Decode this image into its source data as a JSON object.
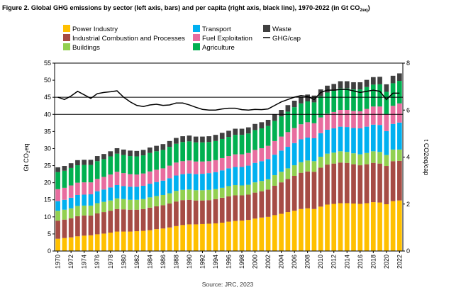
{
  "chart_data": {
    "type": "bar",
    "stacked": true,
    "title": "Figure 2. Global GHG emissions by sector (left axis, bars) and per capita (right axis, black line), 1970-2022 (in Gt CO",
    "title_sub": "2eq",
    "title_end": ")",
    "source": "Source: JRC, 2023",
    "ylabel_main": "Gt CO",
    "ylabel_sub": "2",
    "ylabel_tail": "eq",
    "y2label": "t CO2eq/cap",
    "ylim": [
      0,
      55
    ],
    "y2lim": [
      0,
      8
    ],
    "yticks": [
      "0",
      "5",
      "10",
      "15",
      "20",
      "25",
      "30",
      "35",
      "40",
      "45",
      "50",
      "55"
    ],
    "y2ticks": [
      "0",
      "2",
      "4",
      "6",
      "8"
    ],
    "grid": false,
    "hlines": [
      40,
      45
    ],
    "legend_position": "top-left",
    "xticks": [
      "1970",
      "1972",
      "1974",
      "1976",
      "1978",
      "1980",
      "1982",
      "1984",
      "1986",
      "1988",
      "1990",
      "1992",
      "1994",
      "1996",
      "1998",
      "2000",
      "2002",
      "2004",
      "2006",
      "2008",
      "2010",
      "2012",
      "2014",
      "2016",
      "2018",
      "2020",
      "2022"
    ],
    "years": [
      1970,
      1971,
      1972,
      1973,
      1974,
      1975,
      1976,
      1977,
      1978,
      1979,
      1980,
      1981,
      1982,
      1983,
      1984,
      1985,
      1986,
      1987,
      1988,
      1989,
      1990,
      1991,
      1992,
      1993,
      1994,
      1995,
      1996,
      1997,
      1998,
      1999,
      2000,
      2001,
      2002,
      2003,
      2004,
      2005,
      2006,
      2007,
      2008,
      2009,
      2010,
      2011,
      2012,
      2013,
      2014,
      2015,
      2016,
      2017,
      2018,
      2019,
      2020,
      2021,
      2022
    ],
    "series": [
      {
        "name": "Power Industry",
        "color": "#ffc000",
        "values": [
          3.6,
          3.8,
          4.0,
          4.3,
          4.5,
          4.6,
          4.9,
          5.1,
          5.4,
          5.7,
          5.7,
          5.7,
          5.8,
          5.9,
          6.1,
          6.4,
          6.6,
          6.9,
          7.3,
          7.6,
          7.8,
          7.8,
          7.9,
          8.0,
          8.1,
          8.3,
          8.6,
          8.8,
          8.9,
          9.1,
          9.5,
          9.8,
          10.0,
          10.5,
          10.9,
          11.4,
          11.8,
          12.3,
          12.5,
          12.3,
          13.0,
          13.6,
          13.8,
          14.0,
          14.0,
          13.9,
          13.8,
          14.0,
          14.3,
          14.2,
          13.7,
          14.6,
          14.8
        ]
      },
      {
        "name": "Industrial Combustion and Processes",
        "color": "#a64c45",
        "values": [
          5.3,
          5.4,
          5.6,
          5.9,
          5.9,
          5.8,
          6.1,
          6.3,
          6.4,
          6.6,
          6.5,
          6.4,
          6.3,
          6.4,
          6.6,
          6.7,
          6.8,
          7.0,
          7.2,
          7.3,
          7.2,
          7.0,
          6.9,
          6.9,
          7.1,
          7.3,
          7.4,
          7.5,
          7.4,
          7.4,
          7.6,
          7.7,
          8.0,
          8.6,
          9.2,
          9.7,
          10.2,
          10.6,
          10.8,
          10.9,
          11.4,
          11.7,
          11.8,
          11.9,
          11.8,
          11.5,
          11.3,
          11.4,
          11.5,
          11.4,
          11.2,
          11.7,
          11.6
        ]
      },
      {
        "name": "Buildings",
        "color": "#92d050",
        "values": [
          2.9,
          2.9,
          2.9,
          3.0,
          2.9,
          2.9,
          3.0,
          3.0,
          3.0,
          3.1,
          3.0,
          2.9,
          2.9,
          2.9,
          3.0,
          3.0,
          3.0,
          3.0,
          3.1,
          3.0,
          3.0,
          3.0,
          3.0,
          3.0,
          2.9,
          2.9,
          3.0,
          3.0,
          2.9,
          2.9,
          3.0,
          3.0,
          3.0,
          3.1,
          3.1,
          3.1,
          3.1,
          3.1,
          3.2,
          3.1,
          3.2,
          3.2,
          3.2,
          3.3,
          3.2,
          3.2,
          3.2,
          3.3,
          3.4,
          3.4,
          3.2,
          3.4,
          3.3
        ]
      },
      {
        "name": "Transport",
        "color": "#00b0f0",
        "values": [
          2.8,
          2.9,
          3.1,
          3.2,
          3.2,
          3.3,
          3.5,
          3.6,
          3.8,
          3.9,
          3.8,
          3.8,
          3.8,
          3.9,
          4.0,
          4.1,
          4.2,
          4.4,
          4.5,
          4.6,
          4.7,
          4.7,
          4.8,
          4.9,
          5.0,
          5.1,
          5.2,
          5.3,
          5.4,
          5.6,
          5.7,
          5.8,
          5.9,
          6.0,
          6.2,
          6.3,
          6.5,
          6.7,
          6.7,
          6.7,
          6.9,
          7.0,
          7.1,
          7.2,
          7.3,
          7.4,
          7.6,
          7.7,
          7.8,
          7.9,
          7.0,
          7.5,
          7.9
        ]
      },
      {
        "name": "Fuel Exploitation",
        "color": "#e86d9f",
        "values": [
          3.5,
          3.5,
          3.6,
          3.6,
          3.6,
          3.5,
          3.6,
          3.7,
          3.8,
          3.9,
          3.8,
          3.7,
          3.6,
          3.6,
          3.6,
          3.6,
          3.6,
          3.7,
          3.8,
          3.8,
          3.8,
          3.7,
          3.6,
          3.5,
          3.5,
          3.6,
          3.6,
          3.7,
          3.7,
          3.7,
          3.8,
          3.8,
          3.9,
          4.0,
          4.1,
          4.3,
          4.4,
          4.4,
          4.5,
          4.4,
          4.6,
          4.7,
          4.8,
          4.9,
          5.0,
          5.0,
          5.0,
          5.2,
          5.3,
          5.4,
          5.0,
          5.3,
          5.6
        ]
      },
      {
        "name": "Agriculture",
        "color": "#00b050",
        "values": [
          5.0,
          5.0,
          5.1,
          5.1,
          5.1,
          5.1,
          5.2,
          5.2,
          5.3,
          5.3,
          5.3,
          5.3,
          5.3,
          5.3,
          5.4,
          5.4,
          5.4,
          5.5,
          5.5,
          5.6,
          5.6,
          5.6,
          5.6,
          5.6,
          5.6,
          5.6,
          5.6,
          5.7,
          5.7,
          5.7,
          5.8,
          5.8,
          5.8,
          5.9,
          5.9,
          6.0,
          6.1,
          6.1,
          6.1,
          6.1,
          6.2,
          6.2,
          6.2,
          6.3,
          6.3,
          6.3,
          6.4,
          6.4,
          6.4,
          6.5,
          6.5,
          6.6,
          6.6
        ]
      },
      {
        "name": "Waste",
        "color": "#404040",
        "values": [
          1.4,
          1.4,
          1.4,
          1.5,
          1.5,
          1.5,
          1.5,
          1.5,
          1.5,
          1.6,
          1.6,
          1.6,
          1.6,
          1.6,
          1.6,
          1.6,
          1.7,
          1.7,
          1.7,
          1.7,
          1.7,
          1.7,
          1.7,
          1.7,
          1.8,
          1.8,
          1.8,
          1.8,
          1.8,
          1.8,
          1.8,
          1.8,
          1.8,
          1.9,
          1.9,
          1.9,
          1.9,
          2.0,
          2.0,
          2.0,
          2.0,
          2.0,
          2.0,
          2.1,
          2.1,
          2.1,
          2.1,
          2.1,
          2.2,
          2.2,
          2.2,
          2.2,
          2.2
        ]
      }
    ],
    "line": {
      "name": "GHG/cap",
      "axis": "right",
      "color": "#000000",
      "values": [
        6.55,
        6.45,
        6.6,
        6.8,
        6.65,
        6.5,
        6.7,
        6.75,
        6.78,
        6.82,
        6.55,
        6.35,
        6.2,
        6.15,
        6.22,
        6.25,
        6.2,
        6.22,
        6.3,
        6.3,
        6.22,
        6.12,
        6.03,
        6.0,
        6.0,
        6.05,
        6.08,
        6.08,
        6.02,
        6.0,
        6.03,
        6.02,
        6.05,
        6.2,
        6.35,
        6.45,
        6.55,
        6.62,
        6.58,
        6.45,
        6.75,
        6.85,
        6.85,
        6.88,
        6.88,
        6.82,
        6.75,
        6.8,
        6.85,
        6.8,
        6.45,
        6.72,
        6.72
      ]
    }
  }
}
